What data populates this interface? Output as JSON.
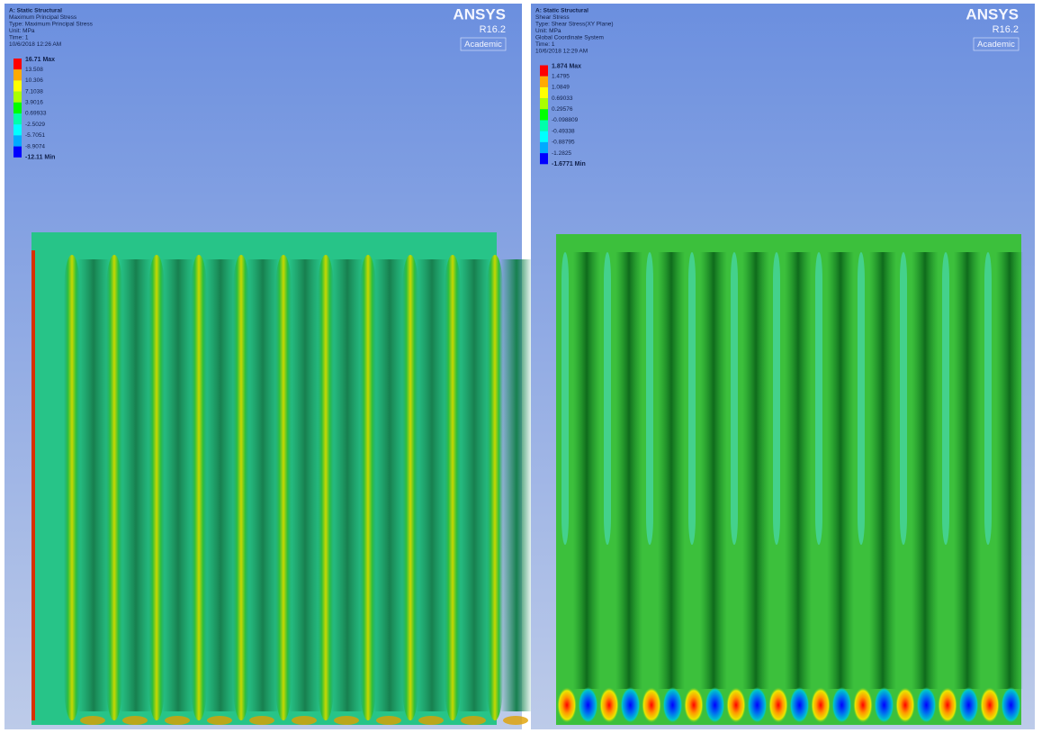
{
  "panels": [
    {
      "header": [
        "A: Static Structural",
        "Maximum Principal Stress",
        "Type: Maximum Principal Stress",
        "Unit: MPa",
        "Time: 1",
        "10/6/2018 12:26 AM"
      ],
      "legend": [
        "16.71 Max",
        "13.508",
        "10.306",
        "7.1038",
        "3.9016",
        "0.69933",
        "-2.5029",
        "-5.7051",
        "-8.9074",
        "-12.11 Min"
      ],
      "logo": {
        "brand": "ANSYS",
        "version": "R16.2",
        "license": "Academic"
      }
    },
    {
      "header": [
        "A: Static Structural",
        "Shear Stress",
        "Type: Shear Stress(XY Plane)",
        "Unit: MPa",
        "Global Coordinate System",
        "Time: 1",
        "10/6/2018 12:29 AM"
      ],
      "legend": [
        "1.874 Max",
        "1.4795",
        "1.0849",
        "0.69033",
        "0.29576",
        "-0.098809",
        "-0.49338",
        "-0.88795",
        "-1.2825",
        "-1.6771 Min"
      ],
      "logo": {
        "brand": "ANSYS",
        "version": "R16.2",
        "license": "Academic"
      }
    }
  ]
}
